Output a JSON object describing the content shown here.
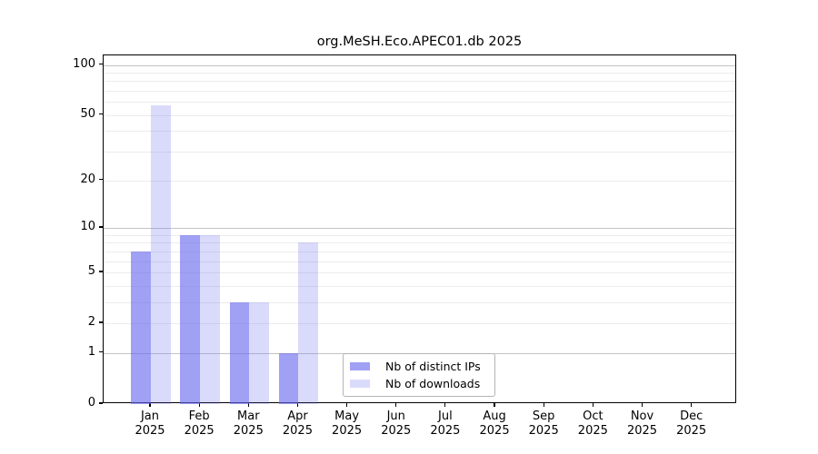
{
  "chart_data": {
    "type": "bar",
    "title": "org.MeSH.Eco.APEC01.db 2025",
    "y_scale": "log10(1+x)",
    "ylim": [
      0,
      114
    ],
    "x_year": "2025",
    "x_categories": [
      "Jan",
      "Feb",
      "Mar",
      "Apr",
      "May",
      "Jun",
      "Jul",
      "Aug",
      "Sep",
      "Oct",
      "Nov",
      "Dec"
    ],
    "y_ticks": [
      100,
      50,
      20,
      10,
      5,
      2,
      1,
      0
    ],
    "major_gridlines": [
      100,
      10,
      1
    ],
    "minor_gridlines": [
      90,
      80,
      70,
      60,
      50,
      40,
      30,
      20,
      9,
      8,
      7,
      6,
      5,
      4,
      3,
      2
    ],
    "series": [
      {
        "name": "Nb of distinct IPs",
        "color": "rgba(102,102,238,0.62)",
        "values": [
          7,
          9,
          3,
          1,
          0,
          0,
          0,
          0,
          0,
          0,
          0,
          0
        ]
      },
      {
        "name": "Nb of downloads",
        "color": "rgba(102,102,238,0.24)",
        "values": [
          57,
          9,
          3,
          8,
          0,
          0,
          0,
          0,
          0,
          0,
          0,
          0
        ]
      }
    ],
    "legend": {
      "position": "bottom-center",
      "entries": [
        "Nb of distinct IPs",
        "Nb of downloads"
      ]
    },
    "colors": {
      "bar_base": "#6666ee",
      "grid_minor": "#ececec",
      "grid_major": "#c4c4c4",
      "spine": "#000000",
      "background": "#ffffff"
    }
  }
}
